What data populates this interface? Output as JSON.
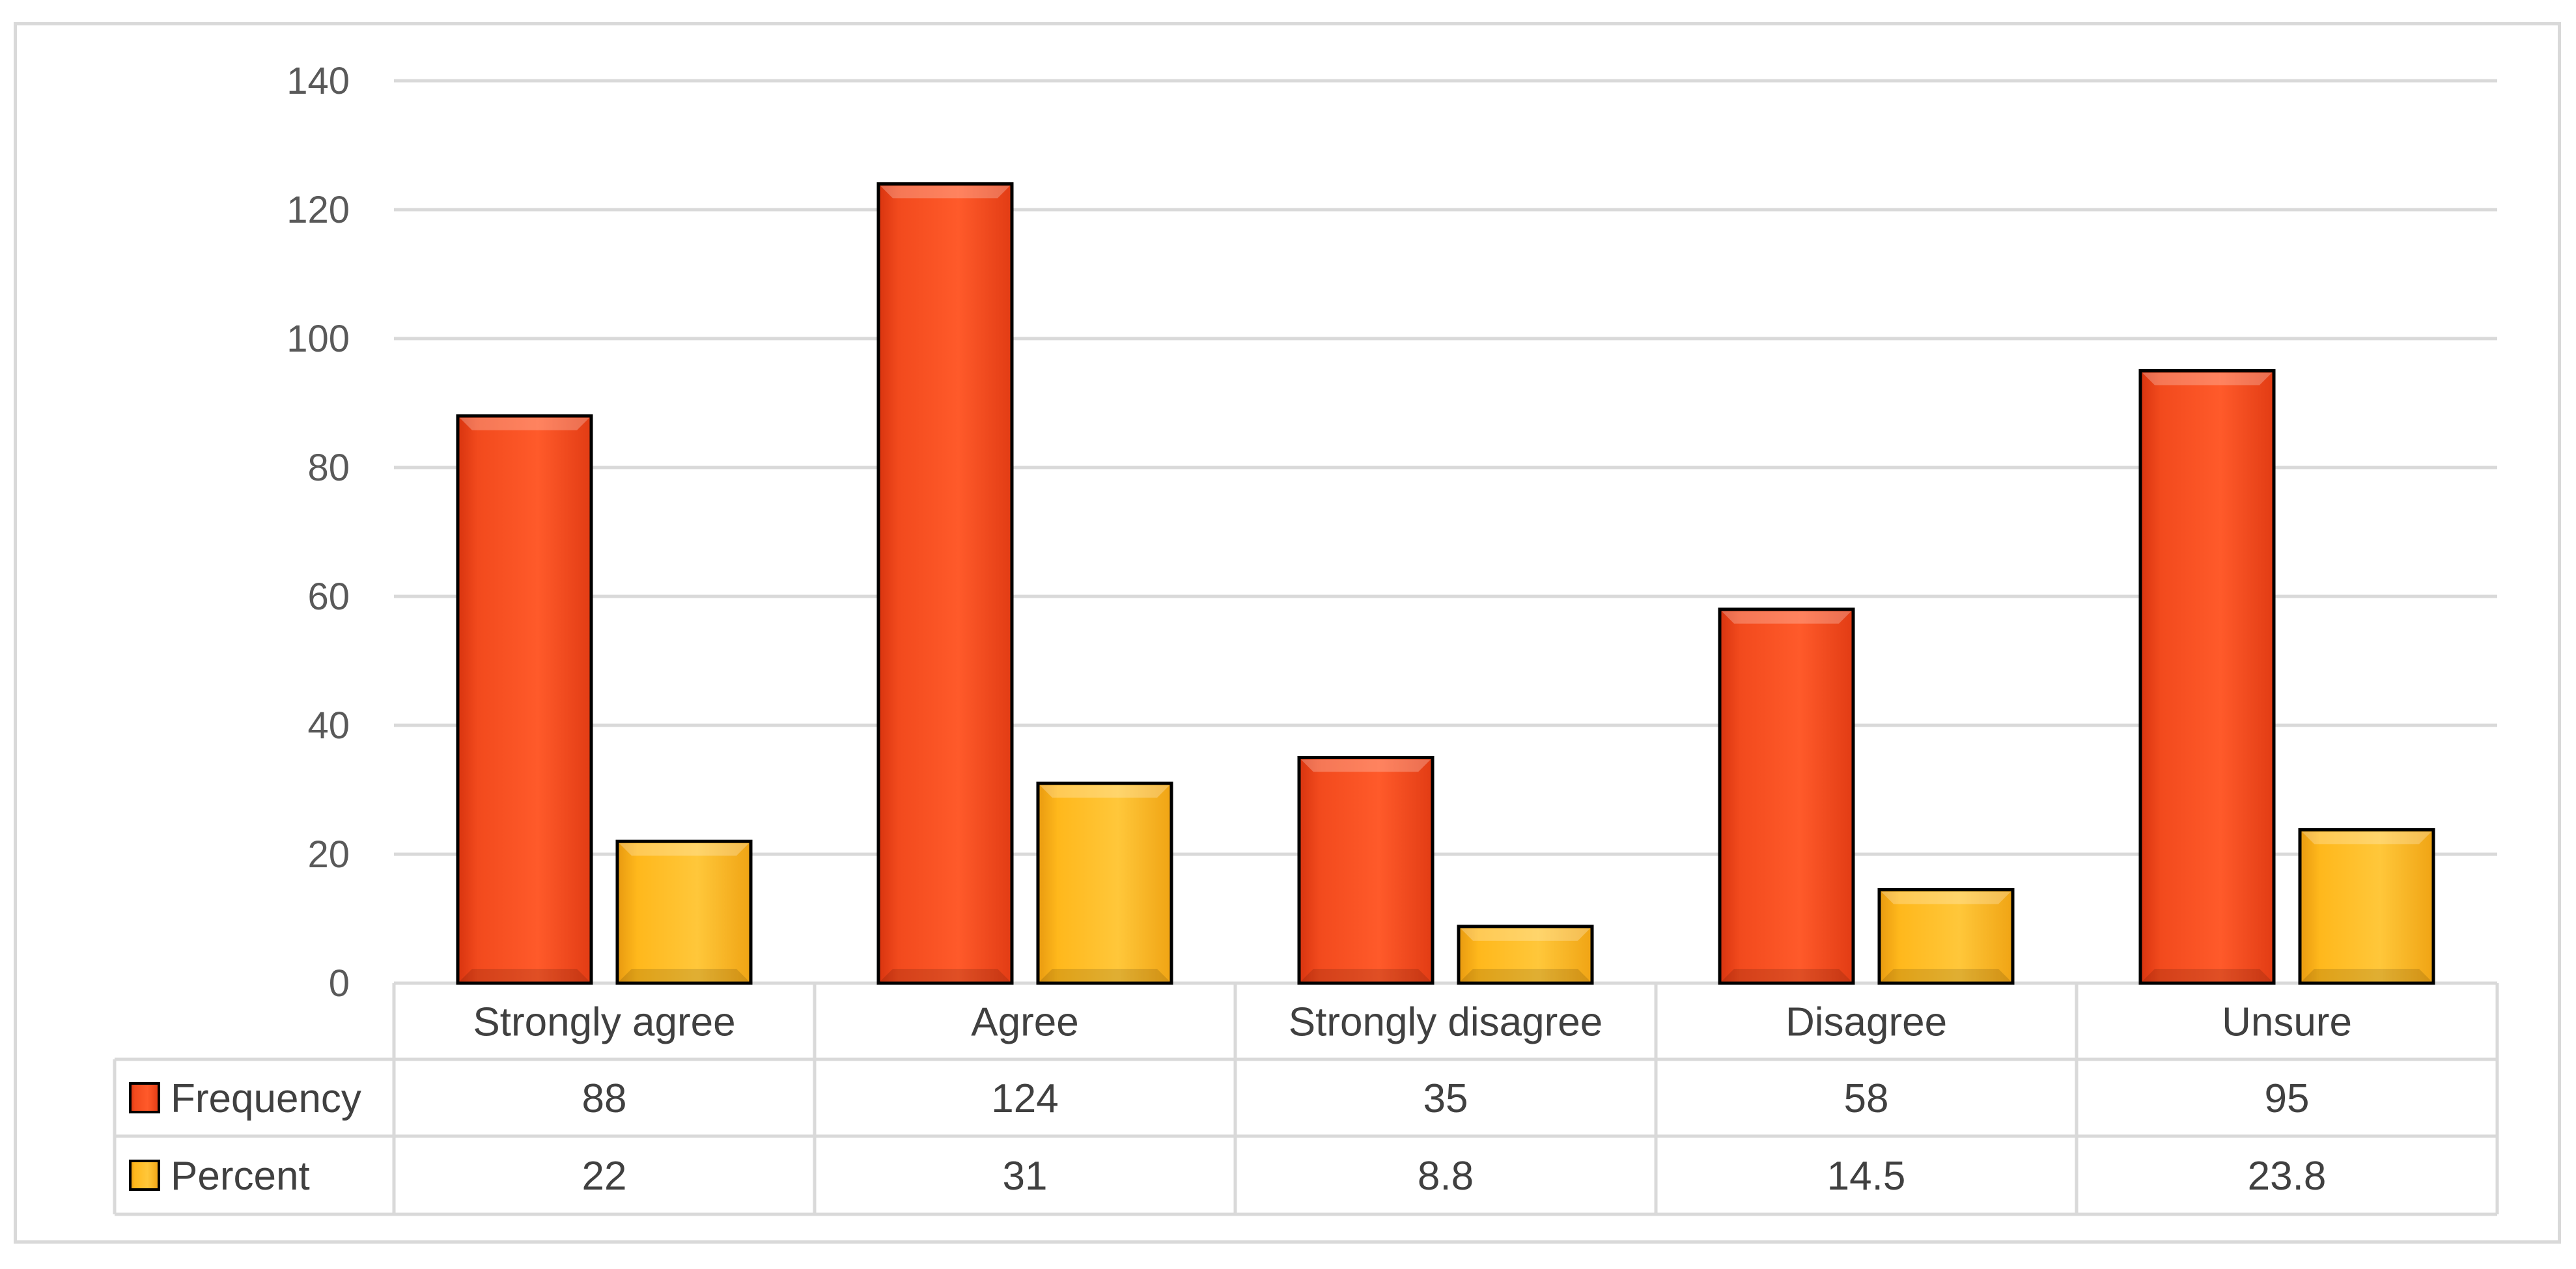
{
  "chart_data": {
    "type": "bar",
    "categories": [
      "Strongly agree",
      "Agree",
      "Strongly disagree",
      "Disagree",
      "Unsure"
    ],
    "series": [
      {
        "name": "Frequency",
        "values": [
          88,
          124,
          35,
          58,
          95
        ],
        "display": [
          "88",
          "124",
          "35",
          "58",
          "95"
        ],
        "color": "#f24a1d"
      },
      {
        "name": "Percent",
        "values": [
          22,
          31,
          8.8,
          14.5,
          23.8
        ],
        "display": [
          "22",
          "31",
          "8.8",
          "14.5",
          "23.8"
        ],
        "color": "#ffb81c"
      }
    ],
    "y_ticks": [
      "0",
      "20",
      "40",
      "60",
      "80",
      "100",
      "120",
      "140"
    ],
    "ylim": [
      0,
      140
    ],
    "grid": true,
    "legend": "data-table",
    "data_table": true
  }
}
